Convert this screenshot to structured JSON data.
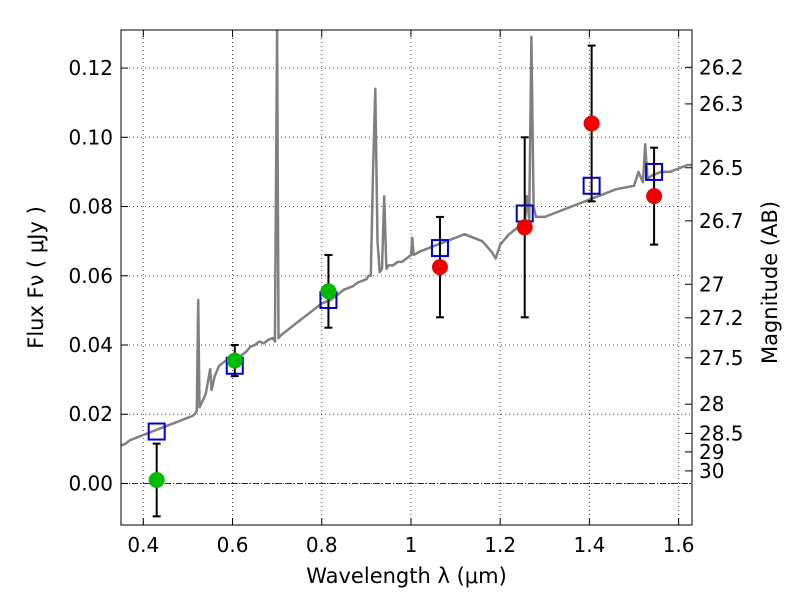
{
  "chart_data": {
    "type": "scatter",
    "title": "",
    "xlabel": "Wavelength  λ (μm)",
    "ylabel": "Flux  Fν  ( μJy )",
    "y2label": "Magnitude (AB)",
    "xlim": [
      0.35,
      1.63
    ],
    "ylim": [
      -0.012,
      0.131
    ],
    "grid": true,
    "x_ticks": [
      {
        "value": 0.4,
        "label": "0.4"
      },
      {
        "value": 0.6,
        "label": "0.6"
      },
      {
        "value": 0.8,
        "label": "0.8"
      },
      {
        "value": 1.0,
        "label": "1"
      },
      {
        "value": 1.2,
        "label": "1.2"
      },
      {
        "value": 1.4,
        "label": "1.4"
      },
      {
        "value": 1.6,
        "label": "1.6"
      }
    ],
    "y_ticks": [
      {
        "value": 0.0,
        "label": "0.00"
      },
      {
        "value": 0.02,
        "label": "0.02"
      },
      {
        "value": 0.04,
        "label": "0.04"
      },
      {
        "value": 0.06,
        "label": "0.06"
      },
      {
        "value": 0.08,
        "label": "0.08"
      },
      {
        "value": 0.1,
        "label": "0.10"
      },
      {
        "value": 0.12,
        "label": "0.12"
      }
    ],
    "magnitude_ticks": [
      {
        "value": 26.2,
        "label": "26.2"
      },
      {
        "value": 26.3,
        "label": "26.3"
      },
      {
        "value": 26.5,
        "label": "26.5"
      },
      {
        "value": 26.7,
        "label": "26.7"
      },
      {
        "value": 27.0,
        "label": "27"
      },
      {
        "value": 27.2,
        "label": "27.2"
      },
      {
        "value": 27.5,
        "label": "27.5"
      },
      {
        "value": 28.0,
        "label": "28"
      },
      {
        "value": 28.5,
        "label": "28.5"
      },
      {
        "value": 29.0,
        "label": "29"
      },
      {
        "value": 30.0,
        "label": "30"
      }
    ],
    "model_spectrum": {
      "color": "#808080",
      "points": [
        [
          0.35,
          0.011
        ],
        [
          0.36,
          0.0115
        ],
        [
          0.37,
          0.0125
        ],
        [
          0.38,
          0.013
        ],
        [
          0.39,
          0.0135
        ],
        [
          0.4,
          0.014
        ],
        [
          0.41,
          0.0145
        ],
        [
          0.42,
          0.015
        ],
        [
          0.43,
          0.0155
        ],
        [
          0.44,
          0.016
        ],
        [
          0.45,
          0.0165
        ],
        [
          0.46,
          0.017
        ],
        [
          0.47,
          0.0175
        ],
        [
          0.48,
          0.018
        ],
        [
          0.49,
          0.0185
        ],
        [
          0.5,
          0.019
        ],
        [
          0.51,
          0.0195
        ],
        [
          0.515,
          0.02
        ],
        [
          0.52,
          0.021
        ],
        [
          0.523,
          0.053
        ],
        [
          0.526,
          0.022
        ],
        [
          0.53,
          0.023
        ],
        [
          0.54,
          0.026
        ],
        [
          0.55,
          0.033
        ],
        [
          0.553,
          0.027
        ],
        [
          0.56,
          0.031
        ],
        [
          0.57,
          0.034
        ],
        [
          0.58,
          0.035
        ],
        [
          0.59,
          0.036
        ],
        [
          0.6,
          0.0345
        ],
        [
          0.61,
          0.0355
        ],
        [
          0.62,
          0.037
        ],
        [
          0.63,
          0.038
        ],
        [
          0.64,
          0.0395
        ],
        [
          0.65,
          0.04
        ],
        [
          0.66,
          0.041
        ],
        [
          0.67,
          0.0405
        ],
        [
          0.68,
          0.0415
        ],
        [
          0.69,
          0.042
        ],
        [
          0.695,
          0.041
        ],
        [
          0.7,
          0.131
        ],
        [
          0.703,
          0.042
        ],
        [
          0.71,
          0.043
        ],
        [
          0.72,
          0.044
        ],
        [
          0.73,
          0.045
        ],
        [
          0.74,
          0.046
        ],
        [
          0.75,
          0.047
        ],
        [
          0.76,
          0.048
        ],
        [
          0.77,
          0.049
        ],
        [
          0.78,
          0.05
        ],
        [
          0.79,
          0.051
        ],
        [
          0.8,
          0.052
        ],
        [
          0.81,
          0.0525
        ],
        [
          0.82,
          0.053
        ],
        [
          0.83,
          0.054
        ],
        [
          0.84,
          0.055
        ],
        [
          0.85,
          0.056
        ],
        [
          0.86,
          0.0565
        ],
        [
          0.87,
          0.057
        ],
        [
          0.88,
          0.058
        ],
        [
          0.89,
          0.0585
        ],
        [
          0.9,
          0.059
        ],
        [
          0.905,
          0.06
        ],
        [
          0.91,
          0.06
        ],
        [
          0.915,
          0.09
        ],
        [
          0.92,
          0.114
        ],
        [
          0.925,
          0.07
        ],
        [
          0.93,
          0.061
        ],
        [
          0.935,
          0.062
        ],
        [
          0.94,
          0.083
        ],
        [
          0.945,
          0.062
        ],
        [
          0.95,
          0.063
        ],
        [
          0.96,
          0.063
        ],
        [
          0.97,
          0.064
        ],
        [
          0.98,
          0.064
        ],
        [
          0.99,
          0.065
        ],
        [
          1.0,
          0.066
        ],
        [
          1.003,
          0.071
        ],
        [
          1.006,
          0.066
        ],
        [
          1.02,
          0.067
        ],
        [
          1.04,
          0.068
        ],
        [
          1.06,
          0.069
        ],
        [
          1.08,
          0.07
        ],
        [
          1.1,
          0.071
        ],
        [
          1.12,
          0.072
        ],
        [
          1.14,
          0.071
        ],
        [
          1.16,
          0.07
        ],
        [
          1.18,
          0.067
        ],
        [
          1.19,
          0.065
        ],
        [
          1.2,
          0.069
        ],
        [
          1.22,
          0.072
        ],
        [
          1.24,
          0.074
        ],
        [
          1.25,
          0.075
        ],
        [
          1.255,
          0.075
        ],
        [
          1.26,
          0.083
        ],
        [
          1.265,
          0.076
        ],
        [
          1.27,
          0.129
        ],
        [
          1.275,
          0.08
        ],
        [
          1.28,
          0.077
        ],
        [
          1.3,
          0.077
        ],
        [
          1.32,
          0.078
        ],
        [
          1.34,
          0.079
        ],
        [
          1.36,
          0.08
        ],
        [
          1.38,
          0.081
        ],
        [
          1.4,
          0.082
        ],
        [
          1.42,
          0.083
        ],
        [
          1.44,
          0.084
        ],
        [
          1.46,
          0.085
        ],
        [
          1.48,
          0.0855
        ],
        [
          1.5,
          0.086
        ],
        [
          1.51,
          0.09
        ],
        [
          1.52,
          0.087
        ],
        [
          1.525,
          0.098
        ],
        [
          1.53,
          0.088
        ],
        [
          1.54,
          0.089
        ],
        [
          1.56,
          0.09
        ],
        [
          1.58,
          0.09
        ],
        [
          1.6,
          0.091
        ],
        [
          1.62,
          0.092
        ],
        [
          1.63,
          0.092
        ]
      ]
    },
    "model_photometry": {
      "marker": "open-square",
      "color": "#0000cc",
      "points": [
        {
          "x": 0.43,
          "y": 0.015
        },
        {
          "x": 0.605,
          "y": 0.034
        },
        {
          "x": 0.815,
          "y": 0.053
        },
        {
          "x": 1.065,
          "y": 0.068
        },
        {
          "x": 1.255,
          "y": 0.078
        },
        {
          "x": 1.405,
          "y": 0.086
        },
        {
          "x": 1.545,
          "y": 0.09
        }
      ]
    },
    "observed_optical": {
      "marker": "filled-circle",
      "color": "#00bb00",
      "points": [
        {
          "x": 0.43,
          "y": 0.001,
          "yerr": 0.0105
        },
        {
          "x": 0.605,
          "y": 0.0355,
          "yerr": 0.0045
        },
        {
          "x": 0.815,
          "y": 0.0555,
          "yerr": 0.0105
        }
      ]
    },
    "observed_nir": {
      "marker": "filled-circle",
      "color": "#ee0000",
      "points": [
        {
          "x": 1.065,
          "y": 0.0625,
          "yerr": 0.0145
        },
        {
          "x": 1.255,
          "y": 0.074,
          "yerr": 0.026
        },
        {
          "x": 1.405,
          "y": 0.104,
          "yerr": 0.0225
        },
        {
          "x": 1.545,
          "y": 0.083,
          "yerr": 0.014
        }
      ]
    }
  }
}
